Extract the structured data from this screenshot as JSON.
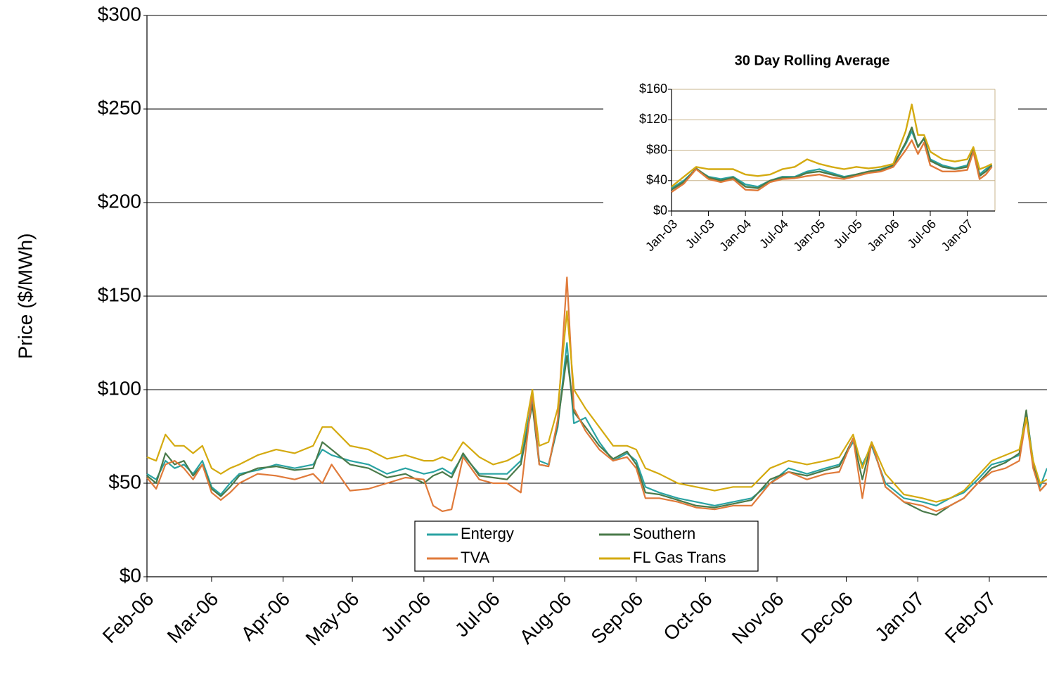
{
  "chart_data": [
    {
      "type": "line",
      "ylabel": "Price ($/MWh)",
      "x": [
        0,
        4,
        8,
        12,
        16,
        20,
        24,
        28,
        32,
        36,
        40,
        48,
        56,
        64,
        72,
        76,
        80,
        88,
        96,
        104,
        112,
        120,
        124,
        128,
        132,
        137,
        144,
        150,
        156,
        162,
        167,
        170,
        174,
        178,
        182,
        185,
        190,
        196,
        202,
        208,
        212,
        216,
        222,
        230,
        238,
        246,
        254,
        262,
        270,
        278,
        286,
        294,
        300,
        306,
        310,
        314,
        320,
        328,
        336,
        342,
        348,
        354,
        360,
        366,
        372,
        378,
        381,
        384,
        387,
        390
      ],
      "series": [
        {
          "name": "Entergy",
          "color": "#2aa3a3",
          "values": [
            55,
            52,
            62,
            58,
            60,
            55,
            62,
            48,
            44,
            50,
            55,
            57,
            60,
            58,
            60,
            68,
            65,
            62,
            60,
            55,
            58,
            55,
            56,
            58,
            55,
            65,
            55,
            55,
            55,
            62,
            95,
            62,
            60,
            80,
            125,
            82,
            85,
            72,
            62,
            66,
            62,
            48,
            45,
            42,
            40,
            38,
            40,
            42,
            50,
            58,
            55,
            58,
            60,
            72,
            60,
            70,
            50,
            42,
            40,
            38,
            42,
            45,
            52,
            60,
            62,
            65,
            88,
            62,
            48,
            58
          ]
        },
        {
          "name": "Southern",
          "color": "#4a7a4a",
          "values": [
            54,
            50,
            66,
            60,
            62,
            54,
            60,
            47,
            43,
            48,
            54,
            58,
            59,
            57,
            58,
            72,
            68,
            60,
            58,
            53,
            55,
            50,
            54,
            56,
            53,
            66,
            54,
            53,
            52,
            60,
            92,
            60,
            59,
            82,
            118,
            88,
            80,
            70,
            63,
            67,
            60,
            45,
            44,
            41,
            38,
            37,
            39,
            41,
            52,
            56,
            54,
            57,
            59,
            74,
            52,
            72,
            48,
            40,
            35,
            33,
            38,
            42,
            50,
            58,
            61,
            66,
            89,
            60,
            46,
            50
          ]
        },
        {
          "name": "TVA",
          "color": "#e07a3a",
          "values": [
            53,
            47,
            60,
            62,
            58,
            52,
            60,
            45,
            41,
            45,
            50,
            55,
            54,
            52,
            55,
            50,
            60,
            46,
            47,
            50,
            53,
            52,
            38,
            35,
            36,
            64,
            52,
            50,
            50,
            45,
            98,
            60,
            59,
            84,
            160,
            90,
            78,
            68,
            62,
            64,
            58,
            42,
            42,
            40,
            37,
            36,
            38,
            38,
            50,
            56,
            52,
            55,
            56,
            74,
            42,
            72,
            48,
            40,
            38,
            35,
            38,
            42,
            50,
            56,
            58,
            62,
            85,
            58,
            46,
            50
          ]
        },
        {
          "name": "FL Gas Trans",
          "color": "#d4aa10",
          "values": [
            64,
            62,
            76,
            70,
            70,
            66,
            70,
            58,
            55,
            58,
            60,
            65,
            68,
            66,
            70,
            80,
            80,
            70,
            68,
            63,
            65,
            62,
            62,
            64,
            62,
            72,
            64,
            60,
            62,
            66,
            100,
            70,
            72,
            90,
            142,
            100,
            90,
            80,
            70,
            70,
            68,
            58,
            55,
            50,
            48,
            46,
            48,
            48,
            58,
            62,
            60,
            62,
            64,
            76,
            58,
            72,
            55,
            44,
            42,
            40,
            42,
            46,
            54,
            62,
            65,
            68,
            85,
            62,
            50,
            52
          ]
        }
      ],
      "xlim": [
        0,
        390
      ],
      "xticks": [
        {
          "value": 0,
          "label": "Feb-06"
        },
        {
          "value": 28,
          "label": "Mar-06"
        },
        {
          "value": 59,
          "label": "Apr-06"
        },
        {
          "value": 89,
          "label": "May-06"
        },
        {
          "value": 120,
          "label": "Jun-06"
        },
        {
          "value": 150,
          "label": "Jul-06"
        },
        {
          "value": 181,
          "label": "Aug-06"
        },
        {
          "value": 212,
          "label": "Sep-06"
        },
        {
          "value": 242,
          "label": "Oct-06"
        },
        {
          "value": 273,
          "label": "Nov-06"
        },
        {
          "value": 303,
          "label": "Dec-06"
        },
        {
          "value": 334,
          "label": "Jan-07"
        },
        {
          "value": 365,
          "label": "Feb-07"
        }
      ],
      "ylim": [
        0,
        300
      ],
      "yticks": [
        {
          "value": 0,
          "label": "$0"
        },
        {
          "value": 50,
          "label": "$50"
        },
        {
          "value": 100,
          "label": "$100"
        },
        {
          "value": 150,
          "label": "$150"
        },
        {
          "value": 200,
          "label": "$200"
        },
        {
          "value": 250,
          "label": "$250"
        },
        {
          "value": 300,
          "label": "$300"
        }
      ],
      "grid": true
    },
    {
      "type": "line",
      "title": "30 Day Rolling Average",
      "x": [
        0,
        2,
        4,
        6,
        8,
        10,
        12,
        14,
        16,
        18,
        20,
        22,
        24,
        26,
        28,
        30,
        32,
        34,
        36,
        38,
        39,
        40,
        41,
        42,
        44,
        46,
        48,
        49,
        50,
        51,
        52
      ],
      "series": [
        {
          "color": "#2aa3a3",
          "values": [
            30,
            40,
            55,
            45,
            42,
            45,
            35,
            32,
            40,
            45,
            45,
            52,
            55,
            50,
            45,
            48,
            52,
            55,
            60,
            88,
            105,
            85,
            95,
            68,
            60,
            56,
            60,
            80,
            48,
            55,
            60
          ]
        },
        {
          "color": "#4a7a4a",
          "values": [
            28,
            38,
            56,
            44,
            40,
            44,
            32,
            30,
            40,
            44,
            44,
            50,
            52,
            48,
            44,
            48,
            52,
            54,
            60,
            90,
            110,
            84,
            96,
            66,
            58,
            55,
            58,
            82,
            46,
            52,
            60
          ]
        },
        {
          "color": "#e07a3a",
          "values": [
            25,
            36,
            55,
            42,
            38,
            42,
            28,
            27,
            38,
            42,
            43,
            46,
            48,
            44,
            42,
            46,
            50,
            52,
            58,
            80,
            93,
            75,
            90,
            60,
            52,
            52,
            54,
            78,
            42,
            48,
            58
          ]
        },
        {
          "color": "#d4aa10",
          "values": [
            32,
            45,
            58,
            55,
            55,
            55,
            48,
            46,
            48,
            55,
            58,
            68,
            62,
            58,
            55,
            58,
            56,
            58,
            62,
            105,
            140,
            100,
            100,
            78,
            68,
            65,
            68,
            84,
            55,
            58,
            62
          ]
        }
      ],
      "xlim": [
        0,
        52.5
      ],
      "xticks": [
        {
          "value": 0,
          "label": "Jan-03"
        },
        {
          "value": 6,
          "label": "Jul-03"
        },
        {
          "value": 12,
          "label": "Jan-04"
        },
        {
          "value": 18,
          "label": "Jul-04"
        },
        {
          "value": 24,
          "label": "Jan-05"
        },
        {
          "value": 30,
          "label": "Jul-05"
        },
        {
          "value": 36,
          "label": "Jan-06"
        },
        {
          "value": 42,
          "label": "Jul-06"
        },
        {
          "value": 48,
          "label": "Jan-07"
        }
      ],
      "ylim": [
        0,
        160
      ],
      "yticks": [
        {
          "value": 0,
          "label": "$0"
        },
        {
          "value": 40,
          "label": "$40"
        },
        {
          "value": 80,
          "label": "$80"
        },
        {
          "value": 120,
          "label": "$120"
        },
        {
          "value": 160,
          "label": "$160"
        }
      ],
      "grid": true
    }
  ]
}
